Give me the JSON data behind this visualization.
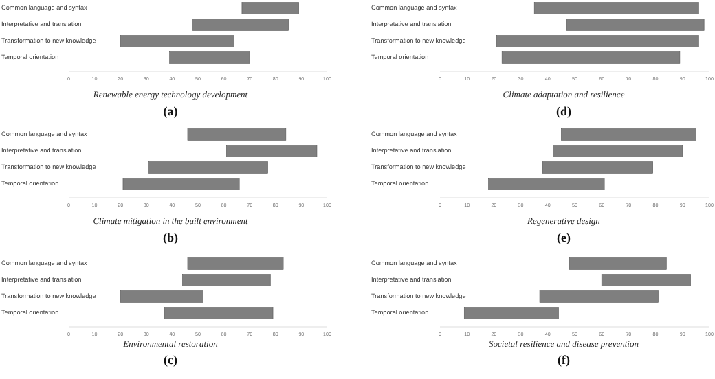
{
  "chart_data": [
    {
      "type": "bar",
      "orientation": "horizontal",
      "title": "Renewable energy technology development",
      "subtitle": "(a)",
      "categories": [
        "Common language and syntax",
        "Interpretative and translation",
        "Transformation to new knowledge",
        "Temporal orientation"
      ],
      "base": [
        67,
        48,
        20,
        39
      ],
      "values": [
        22,
        37,
        44,
        31
      ],
      "color": "#7f7f7f",
      "xlim": [
        0,
        100
      ],
      "xticks": [
        0,
        10,
        20,
        30,
        40,
        50,
        60,
        70,
        80,
        90,
        100
      ]
    },
    {
      "type": "bar",
      "orientation": "horizontal",
      "title": "Climate mitigation in the built environment",
      "subtitle": "(b)",
      "categories": [
        "Common language and syntax",
        "Interpretative and translation",
        "Transformation to new knowledge",
        "Temporal orientation"
      ],
      "base": [
        46,
        61,
        31,
        21
      ],
      "values": [
        38,
        35,
        46,
        45
      ],
      "color": "#7f7f7f",
      "xlim": [
        0,
        100
      ],
      "xticks": [
        0,
        10,
        20,
        30,
        40,
        50,
        60,
        70,
        80,
        90,
        100
      ]
    },
    {
      "type": "bar",
      "orientation": "horizontal",
      "title": "Environmental restoration",
      "subtitle": "(c)",
      "categories": [
        "Common language and syntax",
        "Interpretative and translation",
        "Transformation to new knowledge",
        "Temporal orientation"
      ],
      "base": [
        46,
        44,
        20,
        37
      ],
      "values": [
        37,
        34,
        32,
        42
      ],
      "color": "#7f7f7f",
      "xlim": [
        0,
        100
      ],
      "xticks": [
        0,
        10,
        20,
        30,
        40,
        50,
        60,
        70,
        80,
        90,
        100
      ]
    },
    {
      "type": "bar",
      "orientation": "horizontal",
      "title": "Climate adaptation and resilience",
      "subtitle": "(d)",
      "categories": [
        "Common language and syntax",
        "Interpretative and translation",
        "Transformation to new knowledge",
        "Temporal orientation"
      ],
      "base": [
        35,
        47,
        21,
        23
      ],
      "values": [
        61,
        51,
        75,
        66
      ],
      "color": "#7f7f7f",
      "xlim": [
        0,
        100
      ],
      "xticks": [
        0,
        10,
        20,
        30,
        40,
        50,
        60,
        70,
        80,
        90,
        100
      ]
    },
    {
      "type": "bar",
      "orientation": "horizontal",
      "title": "Regenerative design",
      "subtitle": "(e)",
      "categories": [
        "Common language and syntax",
        "Interpretative and translation",
        "Transformation to new knowledge",
        "Temporal orientation"
      ],
      "base": [
        45,
        42,
        38,
        18
      ],
      "values": [
        50,
        48,
        41,
        43
      ],
      "color": "#7f7f7f",
      "xlim": [
        0,
        100
      ],
      "xticks": [
        0,
        10,
        20,
        30,
        40,
        50,
        60,
        70,
        80,
        90,
        100
      ]
    },
    {
      "type": "bar",
      "orientation": "horizontal",
      "title": "Societal resilience and disease prevention",
      "subtitle": "(f)",
      "categories": [
        "Common language and syntax",
        "Interpretative and translation",
        "Transformation to new knowledge",
        "Temporal orientation"
      ],
      "base": [
        48,
        60,
        37,
        9
      ],
      "values": [
        36,
        33,
        44,
        35
      ],
      "color": "#7f7f7f",
      "xlim": [
        0,
        100
      ],
      "xticks": [
        0,
        10,
        20,
        30,
        40,
        50,
        60,
        70,
        80,
        90,
        100
      ]
    }
  ]
}
